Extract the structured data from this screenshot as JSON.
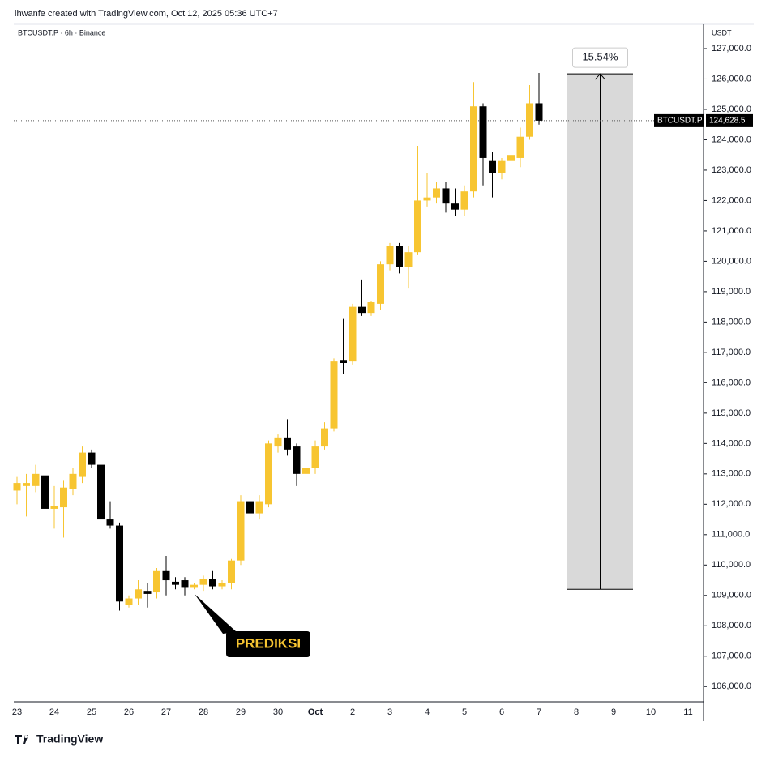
{
  "header": {
    "credit": "ihwanfe created with TradingView.com, Oct 12, 2025 05:36 UTC+7",
    "symbol": "BTCUSDT.P · 6h · Binance",
    "currency": "USDT"
  },
  "chart_data": {
    "type": "candlestick",
    "categories": [
      "23",
      null,
      null,
      null,
      "24",
      null,
      null,
      null,
      "25",
      null,
      null,
      null,
      "26",
      null,
      null,
      null,
      "27",
      null,
      null,
      null,
      "28",
      null,
      null,
      null,
      "29",
      null,
      null,
      null,
      "30",
      null,
      null,
      null,
      "Oct",
      null,
      null,
      null,
      "2",
      null,
      null,
      null,
      "3",
      null,
      null,
      null,
      "4",
      null,
      null,
      null,
      "5",
      null,
      null,
      null,
      "6",
      null,
      null,
      null,
      "7",
      null,
      null,
      null,
      "8",
      null,
      null,
      null,
      "9",
      null,
      null,
      null,
      "10",
      null,
      null,
      null,
      "11",
      null
    ],
    "open": [
      112450,
      112600,
      112600,
      112950,
      111850,
      111900,
      112500,
      112900,
      113700,
      113300,
      111500,
      111300,
      108700,
      108900,
      109150,
      109100,
      109800,
      109450,
      109500,
      109250,
      109350,
      109550,
      109300,
      109400,
      110150,
      112100,
      111700,
      112000,
      113900,
      114200,
      113900,
      113000,
      113200,
      113900,
      114500,
      116750,
      116700,
      118500,
      118300,
      118600,
      119900,
      120500,
      119800,
      120300,
      122000,
      122100,
      122400,
      121900,
      121700,
      122300,
      125100,
      123300,
      122900,
      123300,
      123400,
      124100,
      125200,
      null,
      null,
      null,
      null,
      null,
      null,
      null,
      null,
      null,
      null,
      null,
      null,
      null,
      null,
      null,
      null,
      null
    ],
    "high": [
      112900,
      113000,
      113300,
      113300,
      112600,
      112800,
      113200,
      113900,
      113800,
      113400,
      112100,
      111400,
      109000,
      109500,
      109400,
      109900,
      110300,
      109600,
      109600,
      109400,
      109650,
      109800,
      109500,
      110200,
      112300,
      112300,
      112300,
      114100,
      114300,
      114800,
      114000,
      113600,
      114100,
      114700,
      116800,
      118100,
      118600,
      119400,
      118700,
      120000,
      120600,
      120600,
      120500,
      123800,
      122900,
      122600,
      122600,
      122400,
      122500,
      125900,
      125200,
      123600,
      123400,
      123700,
      124400,
      125800,
      126200,
      null,
      null,
      null,
      null,
      null,
      null,
      null,
      null,
      null,
      null,
      null,
      null,
      null,
      null,
      null,
      null,
      null
    ],
    "low": [
      112000,
      111600,
      112400,
      111700,
      111200,
      110900,
      112300,
      112700,
      113200,
      111300,
      111200,
      108500,
      108600,
      108700,
      108600,
      108900,
      109000,
      109200,
      109000,
      109200,
      109150,
      109200,
      109200,
      109200,
      110000,
      111500,
      111500,
      111900,
      113700,
      113600,
      112600,
      112800,
      113000,
      113800,
      114400,
      116300,
      116600,
      118200,
      118200,
      118400,
      119700,
      119600,
      119100,
      120200,
      121800,
      121900,
      121600,
      121500,
      121500,
      122100,
      122500,
      122100,
      122700,
      123100,
      123100,
      124000,
      124500,
      null,
      null,
      null,
      null,
      null,
      null,
      null,
      null,
      null,
      null,
      null,
      null,
      null,
      null,
      null,
      null,
      null
    ],
    "close": [
      112700,
      112700,
      113000,
      111850,
      111950,
      112550,
      113000,
      113700,
      113300,
      111500,
      111300,
      108800,
      108900,
      109200,
      109050,
      109800,
      109500,
      109350,
      109250,
      109350,
      109550,
      109300,
      109400,
      110150,
      112100,
      111700,
      112100,
      114000,
      114200,
      113800,
      113000,
      113200,
      113900,
      114500,
      116700,
      116650,
      118500,
      118300,
      118650,
      119900,
      120500,
      119800,
      120300,
      122000,
      122100,
      122400,
      121900,
      121700,
      122300,
      125100,
      123400,
      122900,
      123300,
      123500,
      124100,
      125200,
      124628.5,
      null,
      null,
      null,
      null,
      null,
      null,
      null,
      null,
      null,
      null,
      null,
      null,
      null,
      null,
      null,
      null,
      null
    ],
    "up_color": "#f7c531",
    "down_color": "#000000",
    "ylim": [
      105500,
      127800
    ],
    "yticks": [
      {
        "value": 106000,
        "label": "106,000.0"
      },
      {
        "value": 107000,
        "label": "107,000.0"
      },
      {
        "value": 108000,
        "label": "108,000.0"
      },
      {
        "value": 109000,
        "label": "109,000.0"
      },
      {
        "value": 110000,
        "label": "110,000.0"
      },
      {
        "value": 111000,
        "label": "111,000.0"
      },
      {
        "value": 112000,
        "label": "112,000.0"
      },
      {
        "value": 113000,
        "label": "113,000.0"
      },
      {
        "value": 114000,
        "label": "114,000.0"
      },
      {
        "value": 115000,
        "label": "115,000.0"
      },
      {
        "value": 116000,
        "label": "116,000.0"
      },
      {
        "value": 117000,
        "label": "117,000.0"
      },
      {
        "value": 118000,
        "label": "118,000.0"
      },
      {
        "value": 119000,
        "label": "119,000.0"
      },
      {
        "value": 120000,
        "label": "120,000.0"
      },
      {
        "value": 121000,
        "label": "121,000.0"
      },
      {
        "value": 122000,
        "label": "122,000.0"
      },
      {
        "value": 123000,
        "label": "123,000.0"
      },
      {
        "value": 124000,
        "label": "124,000.0"
      },
      {
        "value": 125000,
        "label": "125,000.0"
      },
      {
        "value": 126000,
        "label": "126,000.0"
      },
      {
        "value": 127000,
        "label": "127,000.0"
      }
    ],
    "last_price": {
      "name": "BTCUSDT.P",
      "value": 124628.5,
      "value_label": "124,628.5"
    },
    "measure": {
      "label": "15.54%",
      "low": 109200,
      "high": 126170
    },
    "annotation": "PREDIKSI"
  },
  "footer": {
    "logo": "TradingView"
  }
}
